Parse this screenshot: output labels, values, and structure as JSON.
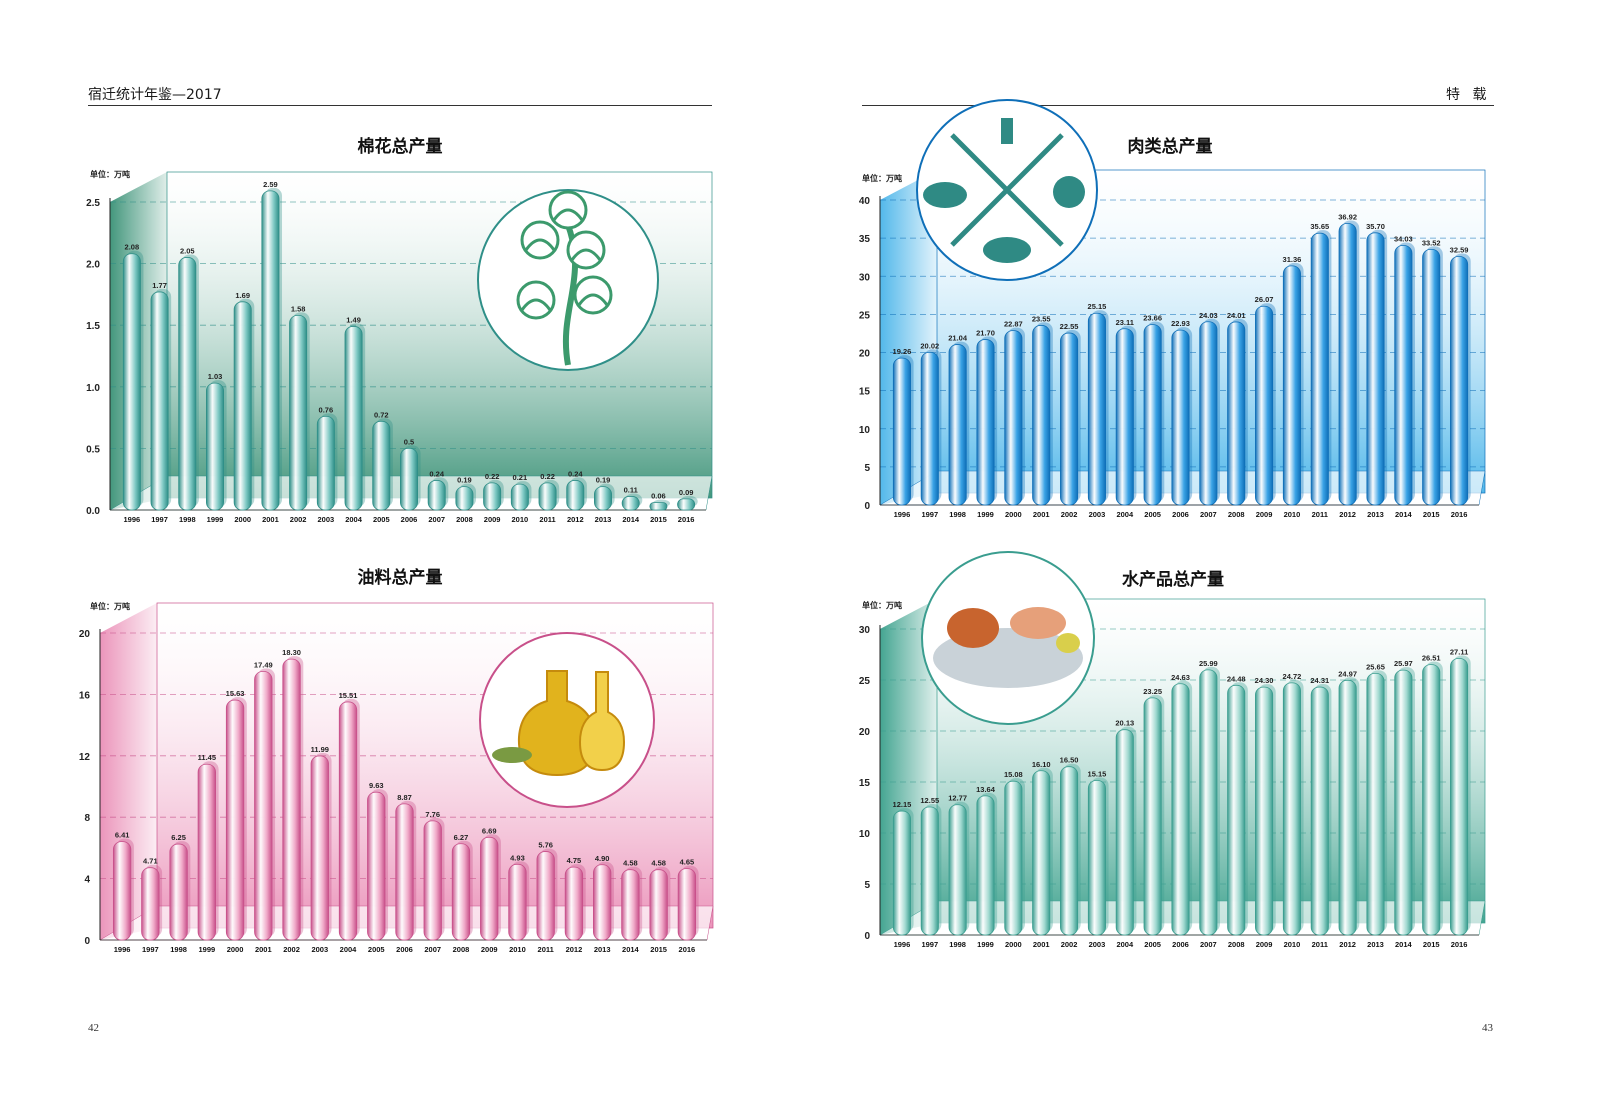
{
  "header": {
    "left_title": "宿迁统计年鉴—2017",
    "right_title": "特 载",
    "left_page_number": "42",
    "right_page_number": "43"
  },
  "chart_data": [
    {
      "type": "bar",
      "title": "棉花总产量",
      "unit_label": "单位：万吨",
      "categories": [
        "1996",
        "1997",
        "1998",
        "1999",
        "2000",
        "2001",
        "2002",
        "2003",
        "2004",
        "2005",
        "2006",
        "2007",
        "2008",
        "2009",
        "2010",
        "2011",
        "2012",
        "2013",
        "2014",
        "2015",
        "2016"
      ],
      "series": [
        {
          "values": [
            2.08,
            1.77,
            2.05,
            1.03,
            1.69,
            2.59,
            1.58,
            0.76,
            1.49,
            0.72,
            0.5,
            0.24,
            0.19,
            0.22,
            0.21,
            0.22,
            0.24,
            0.19,
            0.11,
            0.06,
            0.09
          ]
        }
      ],
      "value_labels": [
        "2.08",
        "1.77",
        "2.05",
        "1.03",
        "1.69",
        "2.59",
        "1.58",
        "0.76",
        "1.49",
        "0.72",
        "0.5",
        "0.24",
        "0.19",
        "0.22",
        "0.21",
        "0.22",
        "0.24",
        "0.19",
        "0.11",
        "0.06",
        "0.09"
      ],
      "yticks": [
        "0.0",
        "0.5",
        "1.0",
        "1.5",
        "2.0",
        "2.5"
      ],
      "ylim": [
        0,
        2.5
      ],
      "grid": true,
      "colors": {
        "bar": "#7fc9c4",
        "bar_dark": "#2f8f88",
        "panel": "#2e8b6e"
      },
      "icon": "cotton-plant-icon"
    },
    {
      "type": "bar",
      "title": "肉类总产量",
      "unit_label": "单位：万吨",
      "categories": [
        "1996",
        "1997",
        "1998",
        "1999",
        "2000",
        "2001",
        "2002",
        "2003",
        "2004",
        "2005",
        "2006",
        "2007",
        "2008",
        "2009",
        "2010",
        "2011",
        "2012",
        "2013",
        "2014",
        "2015",
        "2016"
      ],
      "series": [
        {
          "values": [
            19.26,
            20.02,
            21.04,
            21.7,
            22.87,
            23.55,
            22.55,
            25.15,
            23.11,
            23.66,
            22.93,
            24.03,
            24.01,
            26.07,
            31.36,
            35.65,
            36.92,
            35.7,
            34.03,
            33.52,
            32.59
          ]
        }
      ],
      "value_labels": [
        "19.26",
        "20.02",
        "21.04",
        "21.70",
        "22.87",
        "23.55",
        "22.55",
        "25.15",
        "23.11",
        "23.66",
        "22.93",
        "24.03",
        "24.01",
        "26.07",
        "31.36",
        "35.65",
        "36.92",
        "35.70",
        "34.03",
        "33.52",
        "32.59"
      ],
      "yticks": [
        "0",
        "5",
        "10",
        "15",
        "20",
        "25",
        "30",
        "35",
        "40"
      ],
      "ylim": [
        0,
        40
      ],
      "grid": true,
      "colors": {
        "bar": "#3aa3e6",
        "bar_dark": "#0f6fb8",
        "panel": "#3fb0e8"
      },
      "icon": "livestock-cutlery-icon"
    },
    {
      "type": "bar",
      "title": "油料总产量",
      "unit_label": "单位：万吨",
      "categories": [
        "1996",
        "1997",
        "1998",
        "1999",
        "2000",
        "2001",
        "2002",
        "2003",
        "2004",
        "2005",
        "2006",
        "2007",
        "2008",
        "2009",
        "2010",
        "2011",
        "2012",
        "2013",
        "2014",
        "2015",
        "2016"
      ],
      "series": [
        {
          "values": [
            6.41,
            4.71,
            6.25,
            11.45,
            15.63,
            17.49,
            18.3,
            11.99,
            15.51,
            9.63,
            8.87,
            7.76,
            6.27,
            6.69,
            4.93,
            5.76,
            4.75,
            4.9,
            4.58,
            4.58,
            4.65
          ]
        }
      ],
      "value_labels": [
        "6.41",
        "4.71",
        "6.25",
        "11.45",
        "15.63",
        "17.49",
        "18.30",
        "11.99",
        "15.51",
        "9.63",
        "8.87",
        "7.76",
        "6.27",
        "6.69",
        "4.93",
        "5.76",
        "4.75",
        "4.90",
        "4.58",
        "4.58",
        "4.65"
      ],
      "yticks": [
        "0",
        "4",
        "8",
        "12",
        "16",
        "20"
      ],
      "ylim": [
        0,
        20
      ],
      "grid": true,
      "colors": {
        "bar": "#f0a9c8",
        "bar_dark": "#c8508a",
        "panel": "#e989b3"
      },
      "icon": "oil-bottles-icon"
    },
    {
      "type": "bar",
      "title": "水产品总产量",
      "unit_label": "单位：万吨",
      "categories": [
        "1996",
        "1997",
        "1998",
        "1999",
        "2000",
        "2001",
        "2002",
        "2003",
        "2004",
        "2005",
        "2006",
        "2007",
        "2008",
        "2009",
        "2010",
        "2011",
        "2012",
        "2013",
        "2014",
        "2015",
        "2016"
      ],
      "series": [
        {
          "values": [
            12.15,
            12.55,
            12.77,
            13.64,
            15.08,
            16.1,
            16.5,
            15.15,
            20.13,
            23.25,
            24.63,
            25.99,
            24.48,
            24.3,
            24.72,
            24.31,
            24.97,
            25.65,
            25.97,
            26.51,
            27.11
          ]
        }
      ],
      "value_labels": [
        "12.15",
        "12.55",
        "12.77",
        "13.64",
        "15.08",
        "16.10",
        "16.50",
        "15.15",
        "20.13",
        "23.25",
        "24.63",
        "25.99",
        "24.48",
        "24.30",
        "24.72",
        "24.31",
        "24.97",
        "25.65",
        "25.97",
        "26.51",
        "27.11"
      ],
      "yticks": [
        "0",
        "5",
        "10",
        "15",
        "20",
        "25",
        "30"
      ],
      "ylim": [
        0,
        30
      ],
      "grid": true,
      "colors": {
        "bar": "#9fd8cf",
        "bar_dark": "#3a9d8f",
        "panel": "#2f9b85"
      },
      "icon": "seafood-platter-icon"
    }
  ]
}
